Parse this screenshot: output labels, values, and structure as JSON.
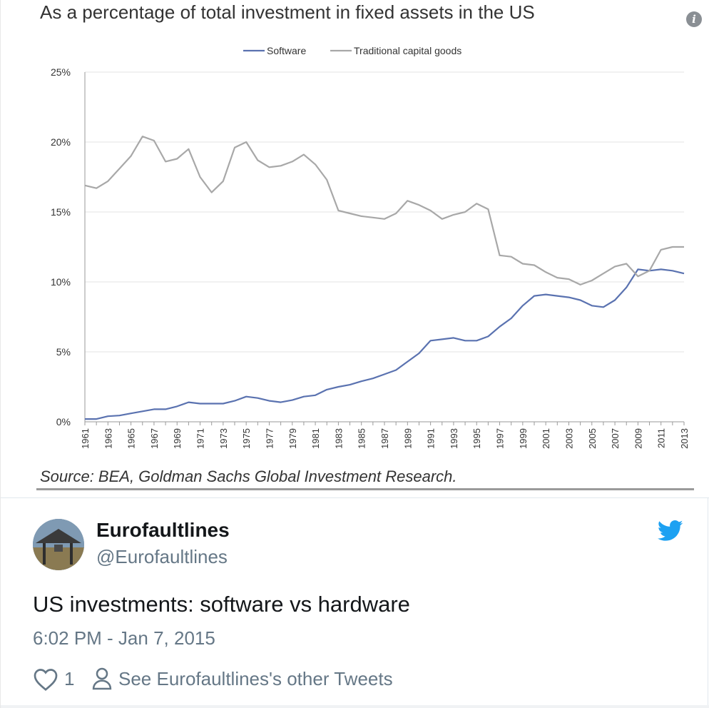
{
  "media": {
    "chart_title": "As a percentage of total investment in fixed assets in the US",
    "source_note": "Source: BEA, Goldman Sachs Global Investment Research.",
    "info_icon": "info-icon"
  },
  "chart_data": {
    "type": "line",
    "title": "As a percentage of total investment in fixed assets in the US",
    "xlabel": "",
    "ylabel": "",
    "ylim": [
      0,
      25
    ],
    "yticks": [
      "0%",
      "5%",
      "10%",
      "15%",
      "20%",
      "25%"
    ],
    "yticks_values": [
      0,
      5,
      10,
      15,
      20,
      25
    ],
    "xticks": [
      "1961",
      "1963",
      "1965",
      "1967",
      "1969",
      "1971",
      "1973",
      "1975",
      "1977",
      "1979",
      "1981",
      "1983",
      "1985",
      "1987",
      "1989",
      "1991",
      "1993",
      "1995",
      "1997",
      "1999",
      "2001",
      "2003",
      "2005",
      "2007",
      "2009",
      "2011",
      "2013"
    ],
    "grid": "horizontal",
    "legend_placement": "top-center",
    "x": [
      1961,
      1962,
      1963,
      1964,
      1965,
      1966,
      1967,
      1968,
      1969,
      1970,
      1971,
      1972,
      1973,
      1974,
      1975,
      1976,
      1977,
      1978,
      1979,
      1980,
      1981,
      1982,
      1983,
      1984,
      1985,
      1986,
      1987,
      1988,
      1989,
      1990,
      1991,
      1992,
      1993,
      1994,
      1995,
      1996,
      1997,
      1998,
      1999,
      2000,
      2001,
      2002,
      2003,
      2004,
      2005,
      2006,
      2007,
      2008,
      2009,
      2010,
      2011,
      2012,
      2013
    ],
    "series": [
      {
        "name": "Software",
        "color": "#5a72b0",
        "values": [
          0.2,
          0.2,
          0.4,
          0.45,
          0.6,
          0.75,
          0.9,
          0.9,
          1.1,
          1.4,
          1.3,
          1.3,
          1.3,
          1.5,
          1.8,
          1.7,
          1.5,
          1.4,
          1.55,
          1.8,
          1.9,
          2.3,
          2.5,
          2.65,
          2.9,
          3.1,
          3.4,
          3.7,
          4.3,
          4.9,
          5.8,
          5.9,
          6.0,
          5.8,
          5.8,
          6.1,
          6.8,
          7.4,
          8.3,
          9.0,
          9.1,
          9.0,
          8.9,
          8.7,
          8.3,
          8.2,
          8.7,
          9.6,
          10.9,
          10.8,
          10.9,
          10.8,
          10.6
        ]
      },
      {
        "name": "Traditional capital goods",
        "color": "#a8a8a8",
        "values": [
          16.9,
          16.7,
          17.2,
          18.1,
          19.0,
          20.4,
          20.1,
          18.6,
          18.8,
          19.5,
          17.5,
          16.4,
          17.2,
          19.6,
          20.0,
          18.7,
          18.2,
          18.3,
          18.6,
          19.1,
          18.4,
          17.3,
          15.1,
          14.9,
          14.7,
          14.6,
          14.5,
          14.9,
          15.8,
          15.5,
          15.1,
          14.5,
          14.8,
          15.0,
          15.6,
          15.2,
          11.9,
          11.8,
          11.3,
          11.2,
          10.7,
          10.3,
          10.2,
          9.8,
          10.1,
          10.6,
          11.1,
          11.3,
          10.4,
          10.8,
          12.3,
          12.5,
          12.5
        ]
      }
    ]
  },
  "tweet": {
    "display_name": "Eurofaultlines",
    "handle": "@Eurofaultlines",
    "text": "US investments: software vs hardware",
    "timestamp": "6:02 PM - Jan 7, 2015",
    "like_count": "1",
    "other_tweets_link": "See Eurofaultlines's other Tweets",
    "brand_color": "#1da1f2",
    "icons": [
      "twitter-bird-icon",
      "heart-icon",
      "person-icon"
    ]
  }
}
